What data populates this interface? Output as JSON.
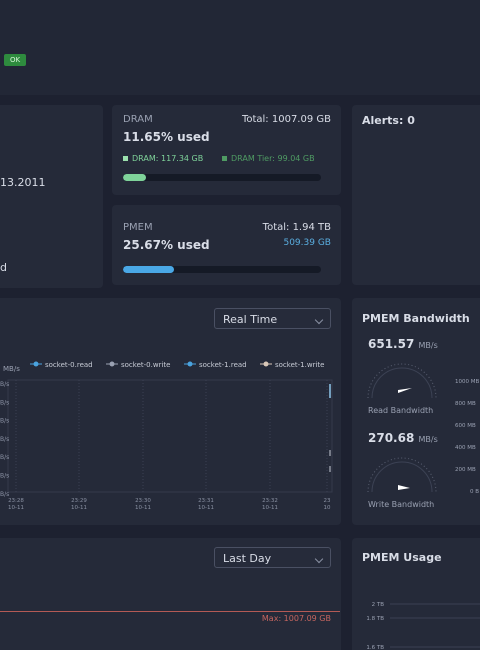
{
  "header": {
    "status": "OK"
  },
  "left_card": {
    "line1": "13.2011",
    "line2": "d"
  },
  "dram": {
    "title": "DRAM",
    "total": "Total: 1007.09 GB",
    "usage": "11.65% used",
    "legend_dram": "DRAM: 117.34 GB",
    "legend_tier": "DRAM Tier: 99.04 GB"
  },
  "pmem": {
    "title": "PMEM",
    "total": "Total: 1.94 TB",
    "usage": "25.67% used",
    "used": "509.39 GB"
  },
  "alerts": {
    "title": "Alerts: 0"
  },
  "bandwidth_chart": {
    "range": "Real Time",
    "unit": "MB/s",
    "legend": [
      {
        "name": "socket-0.read",
        "color": "#4aa3df"
      },
      {
        "name": "socket-0.write",
        "color": "#9aa1b2"
      },
      {
        "name": "socket-1.read",
        "color": "#4aa3df"
      },
      {
        "name": "socket-1.write",
        "color": "#d9c7b8"
      }
    ],
    "y_labels": [
      "B/s",
      "B/s",
      "B/s",
      "B/s",
      "B/s",
      "B/s",
      "B/s"
    ],
    "x_labels": [
      {
        "time": "23:28",
        "date": "10-11"
      },
      {
        "time": "23:29",
        "date": "10-11"
      },
      {
        "time": "23:30",
        "date": "10-11"
      },
      {
        "time": "23:31",
        "date": "10-11"
      },
      {
        "time": "23:32",
        "date": "10-11"
      },
      {
        "time": "23",
        "date": "10"
      }
    ]
  },
  "pmem_bandwidth": {
    "title": "PMEM Bandwidth",
    "read_value": "651.57",
    "read_unit": "MB/s",
    "read_label": "Read Bandwidth",
    "write_value": "270.68",
    "write_unit": "MB/s",
    "write_label": "Write Bandwidth",
    "scale": [
      "1000 MB",
      "800 MB",
      "600 MB",
      "400 MB",
      "200 MB",
      "0 B"
    ]
  },
  "capacity_chart": {
    "range": "Last Day",
    "max": "Max: 1007.09 GB"
  },
  "pmem_usage": {
    "title": "PMEM Usage",
    "ticks": [
      "2 TB",
      "1.8 TB",
      "1.6 TB"
    ]
  }
}
